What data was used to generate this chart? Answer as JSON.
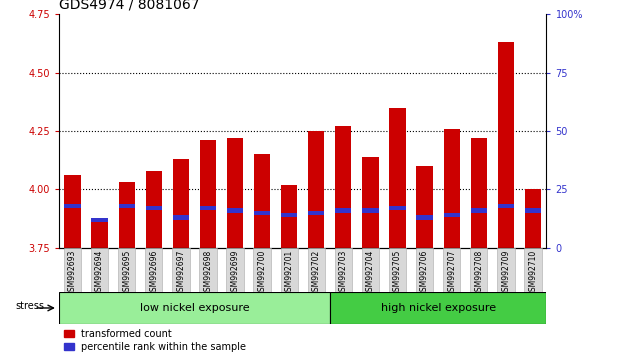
{
  "title": "GDS4974 / 8081067",
  "categories": [
    "GSM992693",
    "GSM992694",
    "GSM992695",
    "GSM992696",
    "GSM992697",
    "GSM992698",
    "GSM992699",
    "GSM992700",
    "GSM992701",
    "GSM992702",
    "GSM992703",
    "GSM992704",
    "GSM992705",
    "GSM992706",
    "GSM992707",
    "GSM992708",
    "GSM992709",
    "GSM992710"
  ],
  "red_values": [
    4.06,
    3.87,
    4.03,
    4.08,
    4.13,
    4.21,
    4.22,
    4.15,
    4.02,
    4.25,
    4.27,
    4.14,
    4.35,
    4.1,
    4.26,
    4.22,
    4.63,
    4.0
  ],
  "blue_values": [
    3.93,
    3.87,
    3.93,
    3.92,
    3.88,
    3.92,
    3.91,
    3.9,
    3.89,
    3.9,
    3.91,
    3.91,
    3.92,
    3.88,
    3.89,
    3.91,
    3.93,
    3.91
  ],
  "ymin": 3.75,
  "ymax": 4.75,
  "yticks_left": [
    3.75,
    4.0,
    4.25,
    4.5,
    4.75
  ],
  "yticks_right": [
    0,
    25,
    50,
    75,
    100
  ],
  "bar_color_red": "#cc0000",
  "bar_color_blue": "#3333cc",
  "group1_label": "low nickel exposure",
  "group2_label": "high nickel exposure",
  "group1_count": 10,
  "group2_count": 8,
  "stress_label": "stress",
  "legend_red": "transformed count",
  "legend_blue": "percentile rank within the sample",
  "group1_color": "#99ee99",
  "group2_color": "#44cc44",
  "title_fontsize": 10,
  "tick_fontsize": 7,
  "bar_width": 0.6
}
